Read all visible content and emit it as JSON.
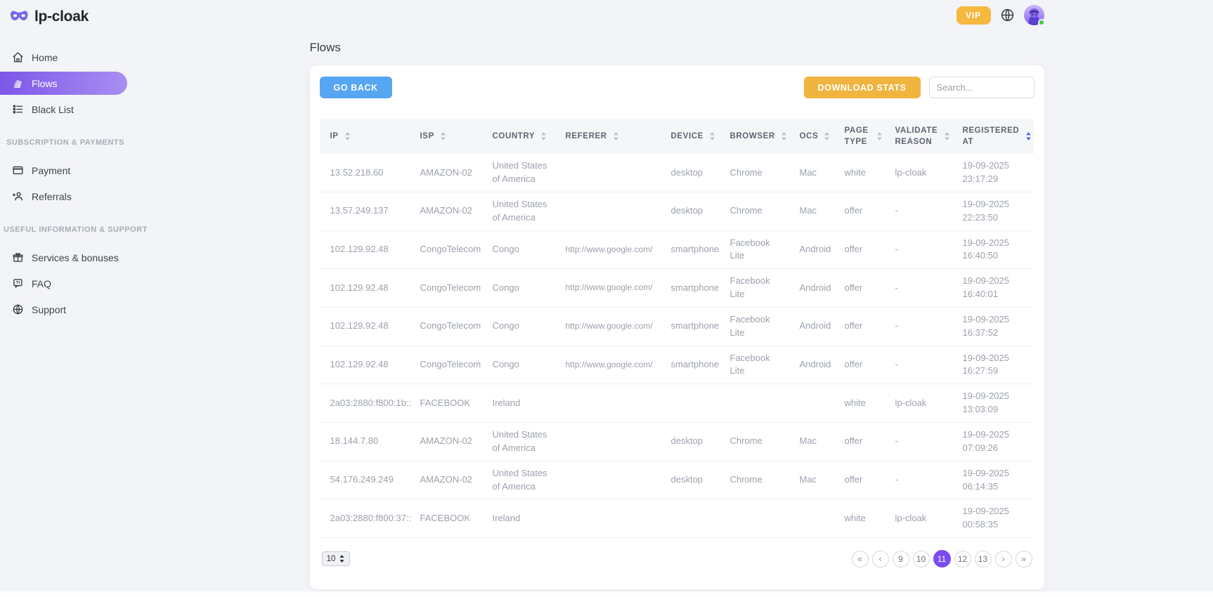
{
  "brand": {
    "name": "lp-cloak"
  },
  "topbar": {
    "vip_label": "VIP"
  },
  "sidebar": {
    "items": [
      {
        "label": "Home",
        "icon": "home-icon",
        "active": false
      },
      {
        "label": "Flows",
        "icon": "flows-icon",
        "active": true
      },
      {
        "label": "Black List",
        "icon": "blacklist-icon",
        "active": false
      }
    ],
    "sections": [
      {
        "title": "SUBSCRIPTION & PAYMENTS",
        "items": [
          {
            "label": "Payment",
            "icon": "payment-icon"
          },
          {
            "label": "Referrals",
            "icon": "referrals-icon"
          }
        ]
      },
      {
        "title": "USEFUL INFORMATION & SUPPORT",
        "items": [
          {
            "label": "Services & bonuses",
            "icon": "services-icon"
          },
          {
            "label": "FAQ",
            "icon": "faq-icon"
          },
          {
            "label": "Support",
            "icon": "support-icon"
          }
        ]
      }
    ]
  },
  "page": {
    "title": "Flows"
  },
  "toolbar": {
    "go_back_label": "GO BACK",
    "download_stats_label": "DOWNLOAD STATS",
    "search_placeholder": "Search..."
  },
  "table": {
    "columns": [
      "IP",
      "ISP",
      "COUNTRY",
      "REFERER",
      "DEVICE",
      "BROWSER",
      "OCS",
      "PAGE TYPE",
      "VALIDATE REASON",
      "REGISTERED AT"
    ],
    "sorted_column": "REGISTERED AT",
    "rows": [
      [
        "13.52.218.60",
        "AMAZON-02",
        "United States of America",
        "",
        "desktop",
        "Chrome",
        "Mac",
        "white",
        "lp-cloak",
        "19-09-2025 23:17:29"
      ],
      [
        "13.57.249.137",
        "AMAZON-02",
        "United States of America",
        "",
        "desktop",
        "Chrome",
        "Mac",
        "offer",
        "-",
        "19-09-2025 22:23:50"
      ],
      [
        "102.129.92.48",
        "CongoTelecom",
        "Congo",
        "http://www.google.com/",
        "smartphone",
        "Facebook Lite",
        "Android",
        "offer",
        "-",
        "19-09-2025 16:40:50"
      ],
      [
        "102.129.92.48",
        "CongoTelecom",
        "Congo",
        "http://www.google.com/",
        "smartphone",
        "Facebook Lite",
        "Android",
        "offer",
        "-",
        "19-09-2025 16:40:01"
      ],
      [
        "102.129.92.48",
        "CongoTelecom",
        "Congo",
        "http://www.google.com/",
        "smartphone",
        "Facebook Lite",
        "Android",
        "offer",
        "-",
        "19-09-2025 16:37:52"
      ],
      [
        "102.129.92.48",
        "CongoTelecom",
        "Congo",
        "http://www.google.com/",
        "smartphone",
        "Facebook Lite",
        "Android",
        "offer",
        "-",
        "19-09-2025 16:27:59"
      ],
      [
        "2a03:2880:f800:1b::",
        "FACEBOOK",
        "Ireland",
        "",
        "",
        "",
        "",
        "white",
        "lp-cloak",
        "19-09-2025 13:03:09"
      ],
      [
        "18.144.7.80",
        "AMAZON-02",
        "United States of America",
        "",
        "desktop",
        "Chrome",
        "Mac",
        "offer",
        "-",
        "19-09-2025 07:09:26"
      ],
      [
        "54.176.249.249",
        "AMAZON-02",
        "United States of America",
        "",
        "desktop",
        "Chrome",
        "Mac",
        "offer",
        "-",
        "19-09-2025 06:14:35"
      ],
      [
        "2a03:2880:f800:37::",
        "FACEBOOK",
        "Ireland",
        "",
        "",
        "",
        "",
        "white",
        "lp-cloak",
        "19-09-2025 00:58:35"
      ]
    ]
  },
  "pagination": {
    "page_size": "10",
    "first_label": "«",
    "prev_label": "‹",
    "next_label": "›",
    "last_label": "»",
    "pages": [
      "9",
      "10",
      "11",
      "12",
      "13"
    ],
    "active_page": "11"
  },
  "colors": {
    "accent_purple": "#7b4cf0",
    "accent_blue": "#56a6f2",
    "accent_amber": "#f0b43f",
    "success_green": "#3ed13e"
  }
}
